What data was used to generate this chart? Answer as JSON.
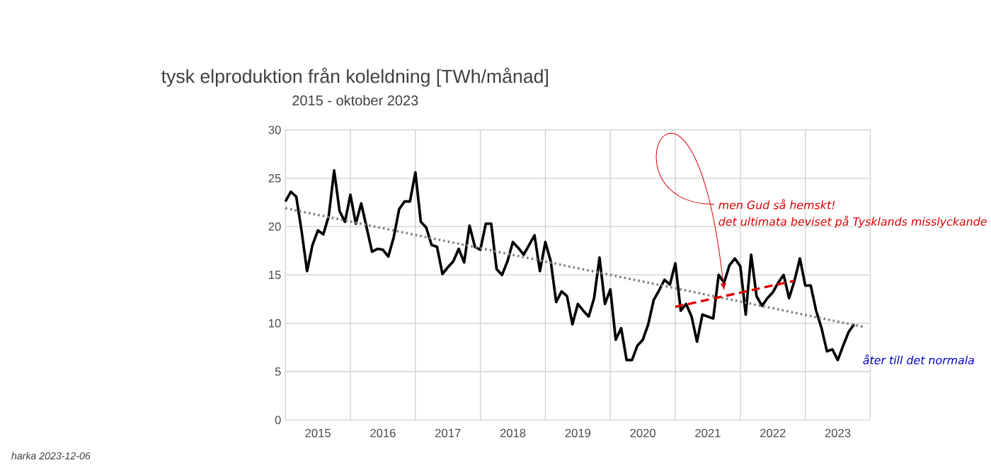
{
  "chart_data": {
    "type": "line",
    "title": "tysk elproduktion från koleldning [TWh/månad]",
    "subtitle": "2015 - oktober 2023",
    "x": [
      "2015-01",
      "2015-02",
      "2015-03",
      "2015-04",
      "2015-05",
      "2015-06",
      "2015-07",
      "2015-08",
      "2015-09",
      "2015-10",
      "2015-11",
      "2015-12",
      "2016-01",
      "2016-02",
      "2016-03",
      "2016-04",
      "2016-05",
      "2016-06",
      "2016-07",
      "2016-08",
      "2016-09",
      "2016-10",
      "2016-11",
      "2016-12",
      "2017-01",
      "2017-02",
      "2017-03",
      "2017-04",
      "2017-05",
      "2017-06",
      "2017-07",
      "2017-08",
      "2017-09",
      "2017-10",
      "2017-11",
      "2017-12",
      "2018-01",
      "2018-02",
      "2018-03",
      "2018-04",
      "2018-05",
      "2018-06",
      "2018-07",
      "2018-08",
      "2018-09",
      "2018-10",
      "2018-11",
      "2018-12",
      "2019-01",
      "2019-02",
      "2019-03",
      "2019-04",
      "2019-05",
      "2019-06",
      "2019-07",
      "2019-08",
      "2019-09",
      "2019-10",
      "2019-11",
      "2019-12",
      "2020-01",
      "2020-02",
      "2020-03",
      "2020-04",
      "2020-05",
      "2020-06",
      "2020-07",
      "2020-08",
      "2020-09",
      "2020-10",
      "2020-11",
      "2020-12",
      "2021-01",
      "2021-02",
      "2021-03",
      "2021-04",
      "2021-05",
      "2021-06",
      "2021-07",
      "2021-08",
      "2021-09",
      "2021-10",
      "2021-11",
      "2021-12",
      "2022-01",
      "2022-02",
      "2022-03",
      "2022-04",
      "2022-05",
      "2022-06",
      "2022-07",
      "2022-08",
      "2022-09",
      "2022-10",
      "2022-11",
      "2022-12",
      "2023-01",
      "2023-02",
      "2023-03",
      "2023-04",
      "2023-05",
      "2023-06",
      "2023-07",
      "2023-08",
      "2023-09",
      "2023-10"
    ],
    "series": [
      {
        "color": "#000000",
        "line_style": "solid",
        "values": [
          22.6,
          23.6,
          23.1,
          19.5,
          15.4,
          18.1,
          19.6,
          19.2,
          21.1,
          25.8,
          21.6,
          20.5,
          23.3,
          20.3,
          22.4,
          19.9,
          17.4,
          17.7,
          17.6,
          16.9,
          18.9,
          21.8,
          22.6,
          22.6,
          25.6,
          20.5,
          19.9,
          18.1,
          17.9,
          15.1,
          15.8,
          16.4,
          17.7,
          16.3,
          20.1,
          17.9,
          17.6,
          20.3,
          20.3,
          15.6,
          15.0,
          16.4,
          18.4,
          17.8,
          17.1,
          18.1,
          19.1,
          15.4,
          18.4,
          16.4,
          12.2,
          13.3,
          12.8,
          9.9,
          12.0,
          11.3,
          10.7,
          12.6,
          16.8,
          12.0,
          13.5,
          8.3,
          9.5,
          6.2,
          6.2,
          7.7,
          8.3,
          9.9,
          12.4,
          13.4,
          14.5,
          14.0,
          16.2,
          11.3,
          12.0,
          10.7,
          8.1,
          10.9,
          10.7,
          10.5,
          15.0,
          14.2,
          16.0,
          16.7,
          15.9,
          10.9,
          17.1,
          12.8,
          11.8,
          12.6,
          13.2,
          14.2,
          15.0,
          12.6,
          14.4,
          16.7,
          13.9,
          13.9,
          11.3,
          9.5,
          7.1,
          7.3,
          6.2,
          7.7,
          9.1,
          9.9
        ]
      },
      {
        "color": "#808080",
        "line_style": "dotted",
        "x": [
          "2015-01",
          "2023-12"
        ],
        "values": [
          21.9,
          9.6
        ]
      },
      {
        "color": "#e00000",
        "line_style": "dashed",
        "x": [
          "2021-01",
          "2022-11"
        ],
        "values": [
          11.7,
          14.4
        ]
      }
    ],
    "annotations": [
      {
        "text": "men Gud så hemskt!",
        "x": "2021-10",
        "y": 13.4
      },
      "det ultimata beviset på Tysklands misslyckande",
      "åter till det normala",
      "harka 2023-12-06"
    ],
    "xlim": [
      "2015-01",
      "2024-01"
    ],
    "xticks": [
      {
        "value": "2015-01",
        "label": null
      },
      {
        "value": "2015-07",
        "label": "2015"
      },
      {
        "value": "2016-01",
        "label": null
      },
      {
        "value": "2016-07",
        "label": "2016"
      },
      {
        "value": "2017-01",
        "label": null
      },
      {
        "value": "2017-07",
        "label": "2017"
      },
      {
        "value": "2018-01",
        "label": null
      },
      {
        "value": "2018-07",
        "label": "2018"
      },
      {
        "value": "2019-01",
        "label": null
      },
      {
        "value": "2019-07",
        "label": "2019"
      },
      {
        "value": "2020-01",
        "label": null
      },
      {
        "value": "2020-07",
        "label": "2020"
      },
      {
        "value": "2021-01",
        "label": null
      },
      {
        "value": "2021-07",
        "label": "2021"
      },
      {
        "value": "2022-01",
        "label": null
      },
      {
        "value": "2022-07",
        "label": "2022"
      },
      {
        "value": "2023-01",
        "label": null
      },
      {
        "value": "2023-07",
        "label": "2023"
      },
      {
        "value": "2024-01",
        "label": null
      }
    ],
    "ylim": [
      0,
      30
    ],
    "yticks": [
      0,
      5,
      10,
      15,
      20,
      25,
      30
    ],
    "grid": true,
    "marker": "none"
  }
}
